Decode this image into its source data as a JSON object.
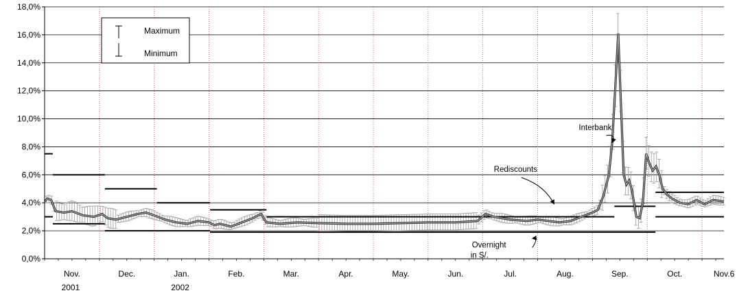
{
  "chart_data": {
    "type": "line",
    "title": "",
    "xlabel": "",
    "ylabel": "",
    "ylim": [
      0,
      18
    ],
    "y_ticks": [
      0,
      2,
      4,
      6,
      8,
      10,
      12,
      14,
      16,
      18
    ],
    "y_tick_labels": [
      "0,0%",
      "2,0%",
      "4,0%",
      "6,0%",
      "8,0%",
      "10,0%",
      "12,0%",
      "14,0%",
      "16,0%",
      "18,0%"
    ],
    "x_range_months": [
      0,
      12.4
    ],
    "months": [
      {
        "label": "Nov.",
        "year": "2001",
        "start": 0
      },
      {
        "label": "Dec.",
        "year": "",
        "start": 1
      },
      {
        "label": "Jan.",
        "year": "2002",
        "start": 2
      },
      {
        "label": "Feb.",
        "year": "",
        "start": 3
      },
      {
        "label": "Mar.",
        "year": "",
        "start": 4
      },
      {
        "label": "Apr.",
        "year": "",
        "start": 5
      },
      {
        "label": "May.",
        "year": "",
        "start": 6
      },
      {
        "label": "Jun.",
        "year": "",
        "start": 7
      },
      {
        "label": "Jul.",
        "year": "",
        "start": 8
      },
      {
        "label": "Aug.",
        "year": "",
        "start": 9
      },
      {
        "label": "Sep.",
        "year": "",
        "start": 10
      },
      {
        "label": "Oct.",
        "year": "",
        "start": 11
      },
      {
        "label": "Nov.6",
        "year": "",
        "start": 12
      }
    ],
    "legend": {
      "position": "top-left",
      "max_label": "Maximum",
      "min_label": "Minimum"
    },
    "grid": "horizontal",
    "annotations": [
      {
        "text": "Interbank",
        "x": 9.75,
        "y": 9.2,
        "arrow_to": [
          10.36,
          8.3
        ]
      },
      {
        "text": "Rediscounts",
        "x": 8.2,
        "y": 6.2,
        "arrow_to": [
          9.3,
          3.9
        ]
      },
      {
        "text": "Overnight",
        "line2": "in S/.",
        "x": 7.8,
        "y": 0.8,
        "arrow_to": [
          8.9,
          1.45
        ]
      }
    ],
    "series": [
      {
        "name": "Rediscounts",
        "step": [
          [
            0,
            7.5
          ],
          [
            0.15,
            6.0
          ],
          [
            1.1,
            5.0
          ],
          [
            2.05,
            4.0
          ],
          [
            3.02,
            3.5
          ],
          [
            4.05,
            3.0
          ],
          [
            10.3,
            3.0
          ],
          [
            10.4,
            3.75
          ],
          [
            11.1,
            3.75
          ],
          [
            11.15,
            4.75
          ],
          [
            12.4,
            4.75
          ]
        ]
      },
      {
        "name": "Overnight in S/.",
        "step": [
          [
            0,
            3.0
          ],
          [
            0.15,
            2.5
          ],
          [
            1.1,
            2.0
          ],
          [
            3.02,
            1.9
          ],
          [
            11.1,
            1.9
          ],
          [
            11.15,
            3.0
          ],
          [
            12.4,
            3.0
          ]
        ]
      },
      {
        "name": "Interbank",
        "points": [
          [
            0,
            4.1
          ],
          [
            0.05,
            4.3
          ],
          [
            0.12,
            4.2
          ],
          [
            0.2,
            3.4
          ],
          [
            0.35,
            3.3
          ],
          [
            0.5,
            3.4
          ],
          [
            0.7,
            3.1
          ],
          [
            0.9,
            3.0
          ],
          [
            1.05,
            3.2
          ],
          [
            1.15,
            2.9
          ],
          [
            1.3,
            2.8
          ],
          [
            1.5,
            3.0
          ],
          [
            1.7,
            3.2
          ],
          [
            1.85,
            3.3
          ],
          [
            2.0,
            3.1
          ],
          [
            2.2,
            2.8
          ],
          [
            2.4,
            2.6
          ],
          [
            2.6,
            2.5
          ],
          [
            2.8,
            2.7
          ],
          [
            3.0,
            2.6
          ],
          [
            3.1,
            2.4
          ],
          [
            3.2,
            2.5
          ],
          [
            3.4,
            2.3
          ],
          [
            3.6,
            2.6
          ],
          [
            3.8,
            2.9
          ],
          [
            3.95,
            3.2
          ],
          [
            4.05,
            2.6
          ],
          [
            4.3,
            2.5
          ],
          [
            4.6,
            2.6
          ],
          [
            5.0,
            2.55
          ],
          [
            5.5,
            2.5
          ],
          [
            6.0,
            2.5
          ],
          [
            6.5,
            2.55
          ],
          [
            7.0,
            2.6
          ],
          [
            7.5,
            2.6
          ],
          [
            7.9,
            2.7
          ],
          [
            8.05,
            3.2
          ],
          [
            8.2,
            3.0
          ],
          [
            8.5,
            2.8
          ],
          [
            8.8,
            2.7
          ],
          [
            9.0,
            2.8
          ],
          [
            9.2,
            2.7
          ],
          [
            9.4,
            2.6
          ],
          [
            9.6,
            2.7
          ],
          [
            9.8,
            3.0
          ],
          [
            10.0,
            3.3
          ],
          [
            10.1,
            3.5
          ],
          [
            10.2,
            4.5
          ],
          [
            10.3,
            6.0
          ],
          [
            10.36,
            8.3
          ],
          [
            10.42,
            12.5
          ],
          [
            10.47,
            16.1
          ],
          [
            10.52,
            11.0
          ],
          [
            10.57,
            6.0
          ],
          [
            10.62,
            5.3
          ],
          [
            10.67,
            5.6
          ],
          [
            10.72,
            4.9
          ],
          [
            10.8,
            3.0
          ],
          [
            10.86,
            2.9
          ],
          [
            10.92,
            4.0
          ],
          [
            10.98,
            7.5
          ],
          [
            11.04,
            6.8
          ],
          [
            11.1,
            6.3
          ],
          [
            11.16,
            6.6
          ],
          [
            11.22,
            6.0
          ],
          [
            11.28,
            5.0
          ],
          [
            11.36,
            4.6
          ],
          [
            11.45,
            4.3
          ],
          [
            11.6,
            4.0
          ],
          [
            11.75,
            3.9
          ],
          [
            11.9,
            4.2
          ],
          [
            12.05,
            3.9
          ],
          [
            12.2,
            4.2
          ],
          [
            12.4,
            4.1
          ]
        ]
      }
    ]
  }
}
